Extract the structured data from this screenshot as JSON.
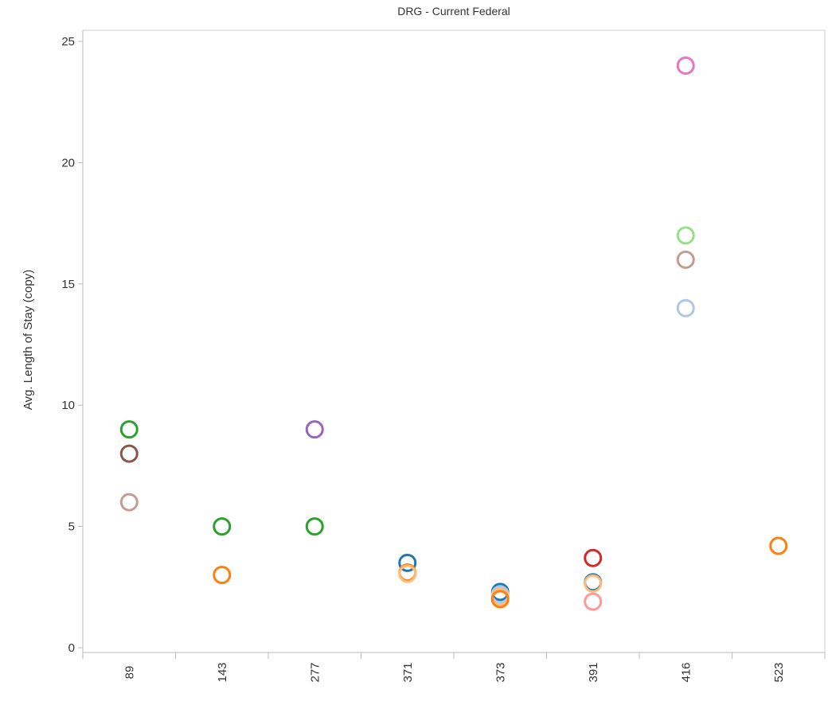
{
  "chart_data": {
    "type": "scatter",
    "title": "DRG - Current Federal",
    "xlabel": "",
    "ylabel": "Avg. Length of Stay (copy)",
    "categories": [
      "89",
      "143",
      "277",
      "371",
      "373",
      "391",
      "416",
      "523"
    ],
    "ylim": [
      0,
      25
    ],
    "yticks": [
      0,
      5,
      10,
      15,
      20,
      25
    ],
    "grid": false,
    "points": [
      {
        "category": "89",
        "y": 9,
        "color": "#2ca02c"
      },
      {
        "category": "89",
        "y": 8,
        "color": "#8c564b"
      },
      {
        "category": "89",
        "y": 6,
        "color": "#c49c94"
      },
      {
        "category": "143",
        "y": 5,
        "color": "#2ca02c"
      },
      {
        "category": "143",
        "y": 3,
        "color": "#ff7f0e"
      },
      {
        "category": "277",
        "y": 9,
        "color": "#9467bd"
      },
      {
        "category": "277",
        "y": 5,
        "color": "#2ca02c"
      },
      {
        "category": "371",
        "y": 3.5,
        "color": "#1f77b4"
      },
      {
        "category": "371",
        "y": 3.1,
        "color": "#ff7f0e"
      },
      {
        "category": "371",
        "y": 3.05,
        "color": "#ffbb78"
      },
      {
        "category": "373",
        "y": 2.3,
        "color": "#1f77b4"
      },
      {
        "category": "373",
        "y": 2.2,
        "color": "#aec7e8"
      },
      {
        "category": "373",
        "y": 2.1,
        "color": "#ffbb78"
      },
      {
        "category": "373",
        "y": 2.0,
        "color": "#ff7f0e"
      },
      {
        "category": "391",
        "y": 3.7,
        "color": "#d62728"
      },
      {
        "category": "391",
        "y": 2.7,
        "color": "#1f77b4"
      },
      {
        "category": "391",
        "y": 2.65,
        "color": "#ffbb78"
      },
      {
        "category": "391",
        "y": 1.9,
        "color": "#ff9896"
      },
      {
        "category": "416",
        "y": 24,
        "color": "#e377c2"
      },
      {
        "category": "416",
        "y": 17,
        "color": "#98df8a"
      },
      {
        "category": "416",
        "y": 16,
        "color": "#c49c94"
      },
      {
        "category": "416",
        "y": 14,
        "color": "#aec7e8"
      },
      {
        "category": "523",
        "y": 4.2,
        "color": "#ff7f0e"
      }
    ]
  }
}
